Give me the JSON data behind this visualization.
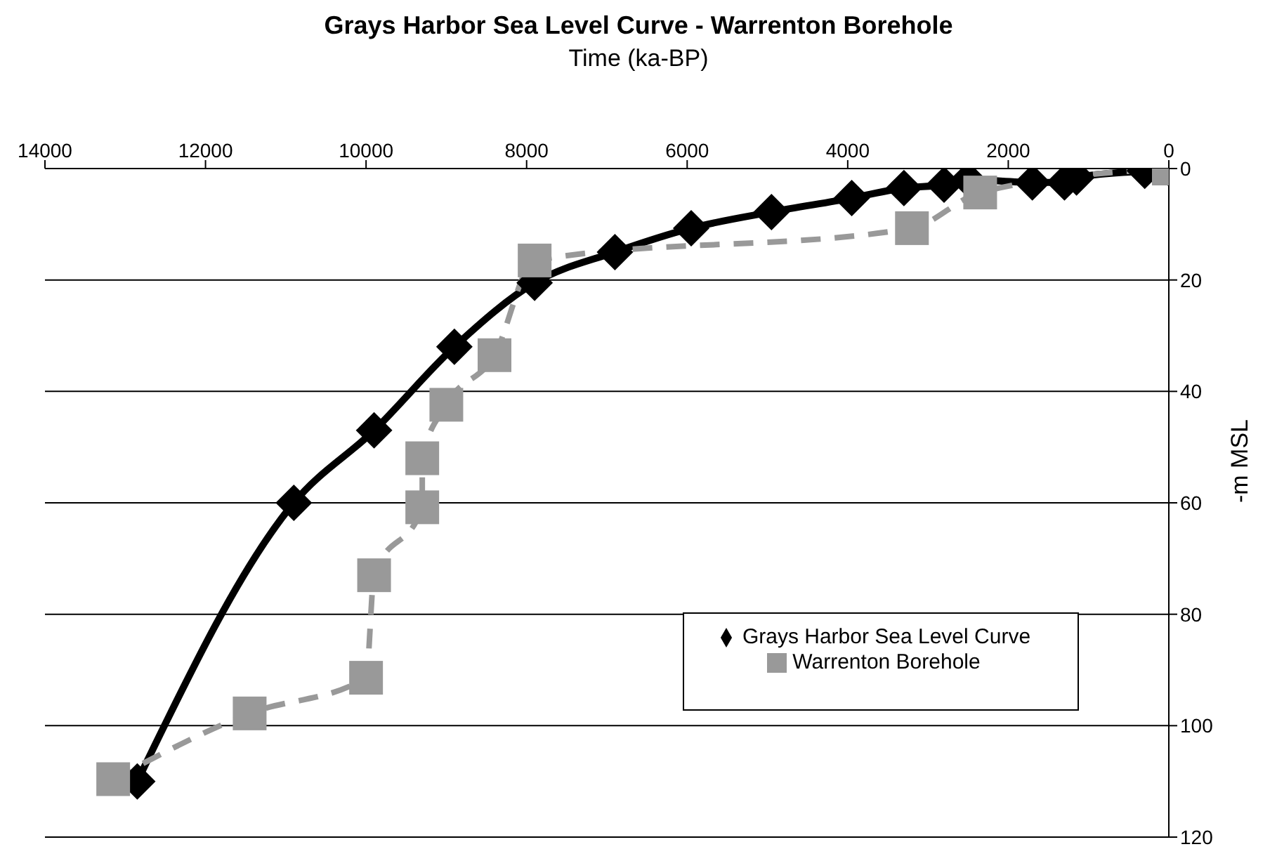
{
  "chart_data": {
    "type": "line",
    "title": "Grays Harbor Sea Level Curve - Warrenton Borehole",
    "xlabel": "Time (ka-BP)",
    "ylabel": "-m MSL",
    "xlim": [
      14000,
      0
    ],
    "xticks": [
      14000,
      12000,
      10000,
      8000,
      6000,
      4000,
      2000,
      0
    ],
    "ylim": [
      120,
      0
    ],
    "yticks": [
      0,
      20,
      40,
      60,
      80,
      100,
      120
    ],
    "grid": "y",
    "legend": "bottom right",
    "series": [
      {
        "name": "Grays Harbor Sea Level Curve",
        "color": "#000000",
        "marker": "diamond",
        "line_style": "solid",
        "x": [
          12850,
          10900,
          9900,
          8900,
          7900,
          6900,
          5950,
          4950,
          3950,
          3300,
          2800,
          2500,
          1700,
          1300,
          1150,
          300,
          0
        ],
        "values": [
          110,
          60,
          47,
          32,
          20.5,
          15,
          10.7,
          7.8,
          5.3,
          3.5,
          2.9,
          2,
          2.5,
          2.5,
          1.6,
          0.4,
          0
        ]
      },
      {
        "name": "Warrenton Borehole",
        "color": "#999999",
        "marker": "square",
        "line_style": "dashed",
        "x": [
          13150,
          11450,
          10000,
          9900,
          9300,
          9300,
          9000,
          8400,
          7900,
          3200,
          2350,
          0
        ],
        "values": [
          109.6,
          97.8,
          91.4,
          73,
          60.8,
          52,
          42.4,
          33.5,
          16.5,
          10.7,
          4.3,
          0
        ]
      }
    ]
  }
}
